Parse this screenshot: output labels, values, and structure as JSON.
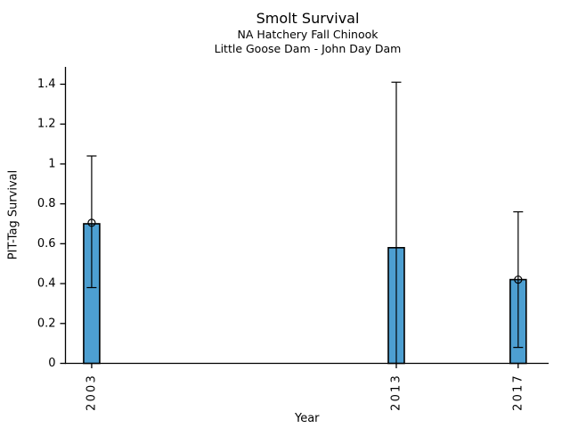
{
  "chart_data": {
    "type": "bar",
    "title": "Smolt Survival",
    "subtitle1": "NA Hatchery Fall Chinook",
    "subtitle2": "Little Goose Dam - John Day Dam",
    "xlabel": "Year",
    "ylabel": "PIT-Tag Survival",
    "categories": [
      "2003",
      "2013",
      "2017"
    ],
    "x_values": [
      2003,
      2013,
      2017
    ],
    "values": [
      0.7,
      0.58,
      0.42
    ],
    "error_low": [
      0.38,
      0.0,
      0.08
    ],
    "error_high": [
      1.04,
      1.41,
      0.76
    ],
    "markers": [
      0.705,
      null,
      0.42
    ],
    "yticks": [
      0,
      0.2,
      0.4,
      0.6,
      0.8,
      1,
      1.2,
      1.4
    ],
    "ylim": [
      0,
      1.487
    ],
    "xlim": [
      2002.14,
      2018.0
    ],
    "grid": false,
    "legend": null,
    "bar_color": "#4D9FD1",
    "bar_edge_color": "#000000",
    "error_color": "#000000",
    "axis_color": "#000000"
  }
}
